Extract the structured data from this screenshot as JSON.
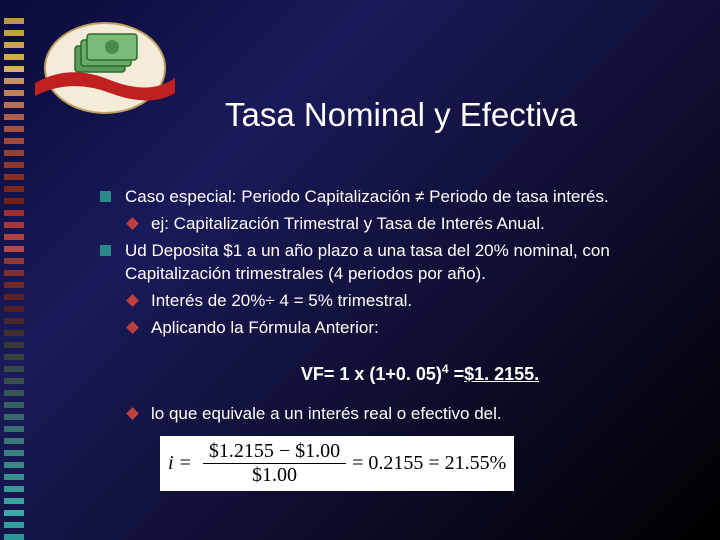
{
  "title": "Tasa Nominal y Efectiva",
  "stripes": {
    "colors": [
      "#b89a3a",
      "#c0a040",
      "#c8a648",
      "#d0ac50",
      "#d8b258",
      "#c89060",
      "#c08058",
      "#b87050",
      "#b06048",
      "#a85040",
      "#a04838",
      "#984030",
      "#903828",
      "#883020",
      "#802818",
      "#782010",
      "#a03030",
      "#a83838",
      "#b04040",
      "#b84848",
      "#903838",
      "#803030",
      "#702828",
      "#602020",
      "#502020",
      "#482828",
      "#403030",
      "#383838",
      "#384040",
      "#384848",
      "#385050",
      "#385858",
      "#386060",
      "#386868",
      "#387070",
      "#387878",
      "#388080",
      "#388888",
      "#389090",
      "#389898",
      "#38a0a0",
      "#38a8a8",
      "#30a0a0",
      "#289898"
    ]
  },
  "bullets": {
    "b1": "Caso especial: Periodo Capitalización ≠ Periodo de tasa interés.",
    "b1a": "ej: Capitalización Trimestral y Tasa de Interés Anual.",
    "b2": "Ud Deposita $1 a un año plazo a una tasa del 20% nominal, con Capitalización trimestrales (4 periodos por año).",
    "b2a": "Interés de 20%÷ 4 = 5% trimestral.",
    "b2b": "Aplicando la Fórmula Anterior:",
    "b3": "lo que equivale a un interés real o efectivo del."
  },
  "formula": {
    "prefix": "VF= 1 x (1+0. 05)",
    "exp": "4",
    "suffix": " =",
    "result": "$1. 2155."
  },
  "equation": {
    "lhs": "i",
    "num": "$1.2155 − $1.00",
    "den": "$1.00",
    "mid": "= 0.2155 = 21.55%"
  },
  "colors": {
    "square_bullet": "#2a8a8a",
    "diamond_bullet": "#c04040"
  }
}
